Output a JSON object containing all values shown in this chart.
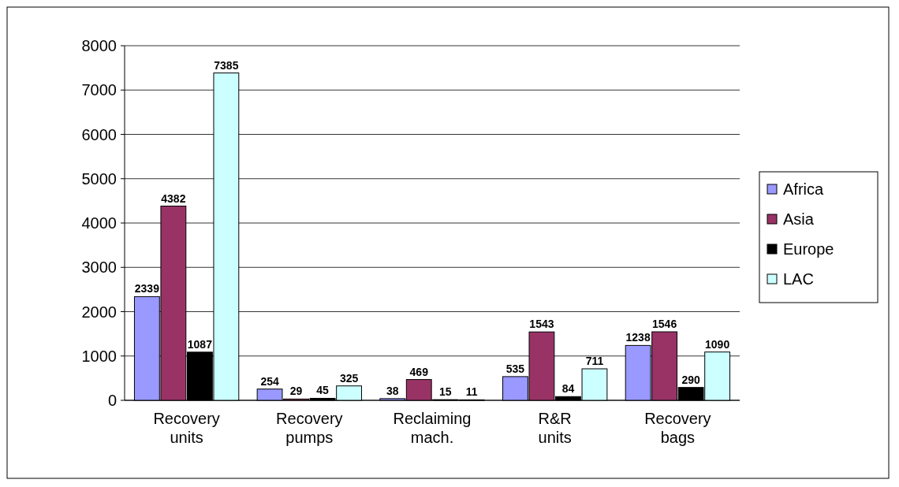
{
  "chart_data": {
    "type": "bar",
    "categories": [
      "Recovery units",
      "Recovery pumps",
      "Reclaiming mach.",
      "R&R units",
      "Recovery bags"
    ],
    "series": [
      {
        "name": "Africa",
        "color": "#9999ff",
        "values": [
          2339,
          254,
          38,
          535,
          1238
        ]
      },
      {
        "name": "Asia",
        "color": "#993366",
        "values": [
          4382,
          29,
          469,
          1543,
          1546
        ]
      },
      {
        "name": "Europe",
        "color": "#000000",
        "values": [
          1087,
          45,
          15,
          84,
          290
        ]
      },
      {
        "name": "LAC",
        "color": "#ccffff",
        "values": [
          7385,
          325,
          11,
          711,
          1090
        ]
      }
    ],
    "ylim": [
      0,
      8000
    ],
    "yticks": [
      0,
      1000,
      2000,
      3000,
      4000,
      5000,
      6000,
      7000,
      8000
    ],
    "grid": "y",
    "legend": "right",
    "data_labels": true
  }
}
